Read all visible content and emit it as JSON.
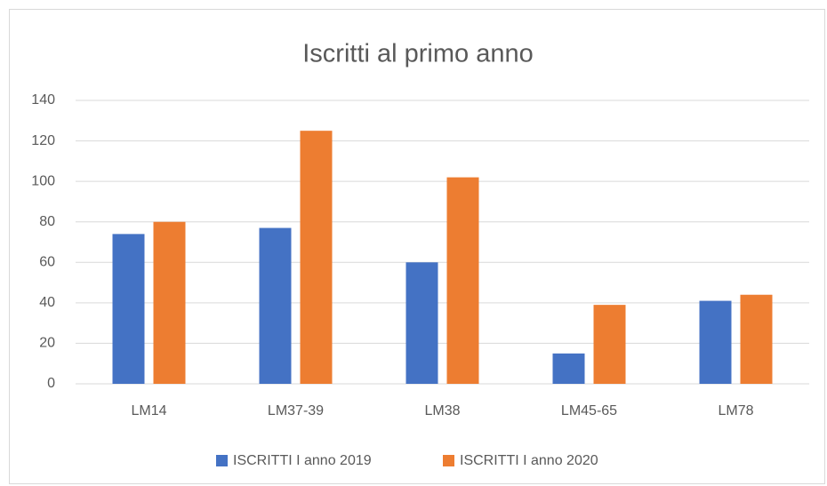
{
  "chart_data": {
    "type": "bar",
    "title": "Iscritti al primo anno",
    "categories": [
      "LM14",
      "LM37-39",
      "LM38",
      "LM45-65",
      "LM78"
    ],
    "series": [
      {
        "name": "ISCRITTI I anno 2019",
        "color": "#4472c4",
        "values": [
          74,
          77,
          60,
          15,
          41
        ]
      },
      {
        "name": "ISCRITTI I anno 2020",
        "color": "#ed7d31",
        "values": [
          80,
          125,
          102,
          39,
          44
        ]
      }
    ],
    "ylim": [
      0,
      140
    ],
    "yticks": [
      0,
      20,
      40,
      60,
      80,
      100,
      120,
      140
    ],
    "grid": true,
    "legend": "bottom"
  }
}
